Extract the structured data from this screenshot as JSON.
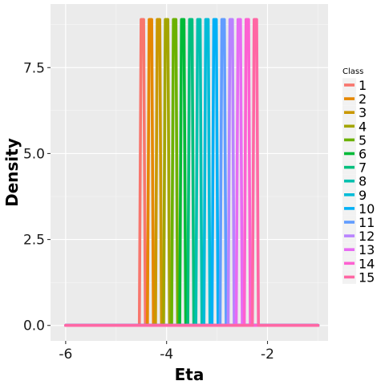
{
  "chart_data": {
    "type": "line",
    "title": "",
    "xlabel": "Eta",
    "ylabel": "Density",
    "xlim": [
      -6.3,
      -0.8
    ],
    "ylim": [
      -0.45,
      9.35
    ],
    "xticks": [
      -6,
      -4,
      -2
    ],
    "xtick_labels": [
      "-6",
      "-4",
      "-2"
    ],
    "yticks": [
      0.0,
      2.5,
      5.0,
      7.5
    ],
    "ytick_labels": [
      "0.0",
      "2.5",
      "5.0",
      "7.5"
    ],
    "grid": true,
    "legend": {
      "title": "Class",
      "position": "right"
    },
    "x_range": [
      -6,
      -1
    ],
    "peak_density": 8.9,
    "series": [
      {
        "name": "1",
        "peak_x": -4.48,
        "color": "#F8766D"
      },
      {
        "name": "2",
        "peak_x": -4.32,
        "color": "#E58700"
      },
      {
        "name": "3",
        "peak_x": -4.16,
        "color": "#C99800"
      },
      {
        "name": "4",
        "peak_x": -4.0,
        "color": "#A3A500"
      },
      {
        "name": "5",
        "peak_x": -3.84,
        "color": "#6BB100"
      },
      {
        "name": "6",
        "peak_x": -3.68,
        "color": "#00BA38"
      },
      {
        "name": "7",
        "peak_x": -3.52,
        "color": "#00BF7D"
      },
      {
        "name": "8",
        "peak_x": -3.36,
        "color": "#00C0AF"
      },
      {
        "name": "9",
        "peak_x": -3.2,
        "color": "#00BCD8"
      },
      {
        "name": "10",
        "peak_x": -3.04,
        "color": "#00B0F6"
      },
      {
        "name": "11",
        "peak_x": -2.88,
        "color": "#619CFF"
      },
      {
        "name": "12",
        "peak_x": -2.72,
        "color": "#B983FF"
      },
      {
        "name": "13",
        "peak_x": -2.56,
        "color": "#E76BF3"
      },
      {
        "name": "14",
        "peak_x": -2.4,
        "color": "#FD61D1"
      },
      {
        "name": "15",
        "peak_x": -2.24,
        "color": "#FF67A4"
      }
    ]
  }
}
